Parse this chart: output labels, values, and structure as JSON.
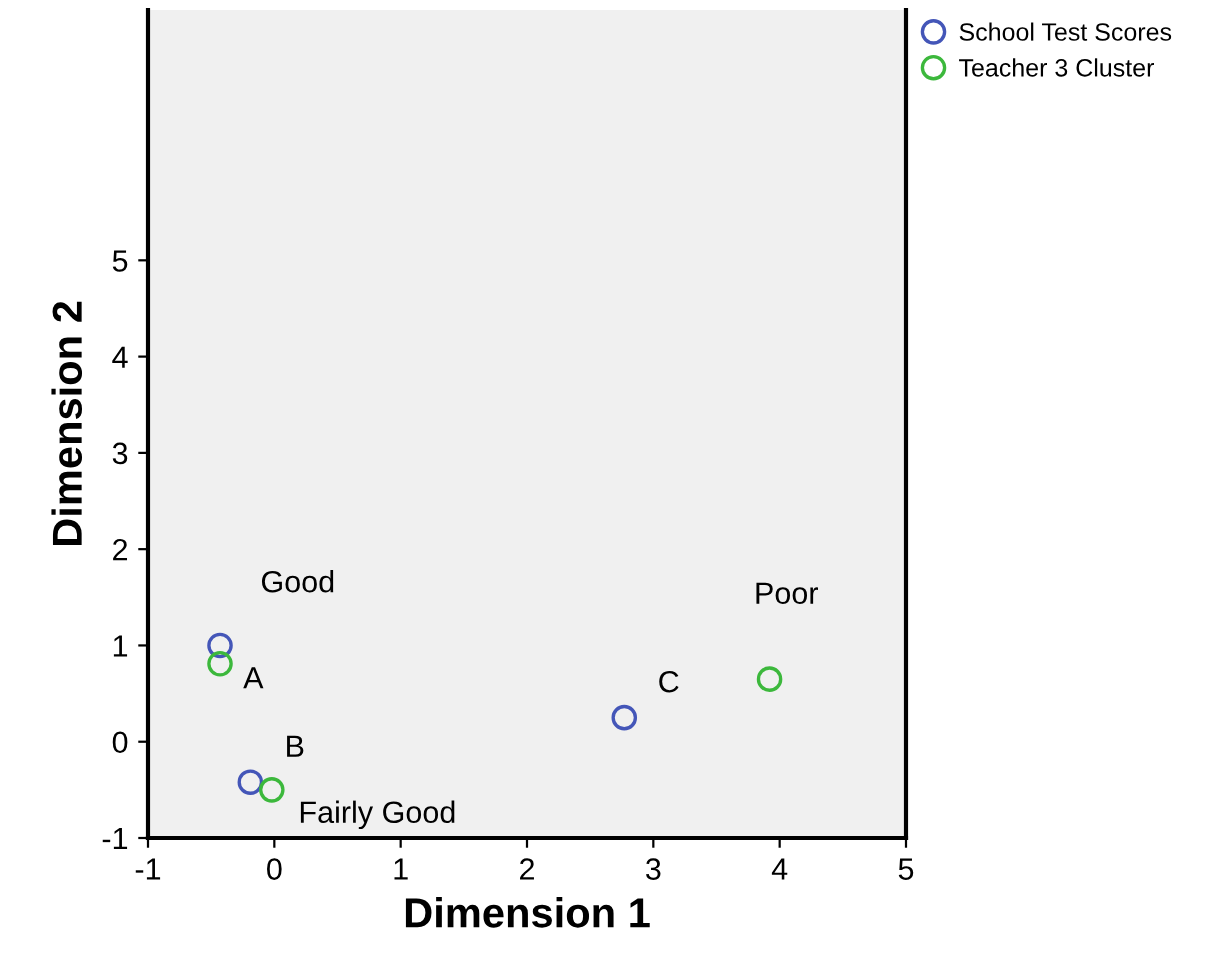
{
  "chart_data": {
    "type": "scatter",
    "xlabel": "Dimension 1",
    "ylabel": "Dimension 2",
    "series": [
      {
        "name": "School Test Scores",
        "color": "#4456b8",
        "x": [
          -0.43,
          -0.19,
          2.77
        ],
        "values": [
          1.0,
          -0.42,
          0.25
        ]
      },
      {
        "name": "Teacher 3 Cluster",
        "color": "#3cb83c",
        "x": [
          -0.43,
          -0.02,
          3.92
        ],
        "values": [
          0.81,
          -0.5,
          0.65
        ]
      }
    ],
    "annotations": [
      {
        "text": "A",
        "x": -0.43,
        "y": 0.81
      },
      {
        "text": "B",
        "x": -0.19,
        "y": -0.42
      },
      {
        "text": "C",
        "x": 2.77,
        "y": 0.25
      },
      {
        "text": "Good",
        "x": -0.43,
        "y": 1.0
      },
      {
        "text": "Fairly Good",
        "x": -0.02,
        "y": -0.5
      },
      {
        "text": "Poor",
        "x": 3.92,
        "y": 0.65
      }
    ],
    "xlim": [
      -1,
      5
    ],
    "ylim": [
      -1,
      7.6
    ],
    "xticks": [
      -1,
      0,
      1,
      2,
      3,
      4,
      5
    ],
    "yticks": [
      -1,
      0,
      1,
      2,
      3,
      4,
      5
    ],
    "marker": "circle",
    "grid": false,
    "legend": "top right"
  }
}
